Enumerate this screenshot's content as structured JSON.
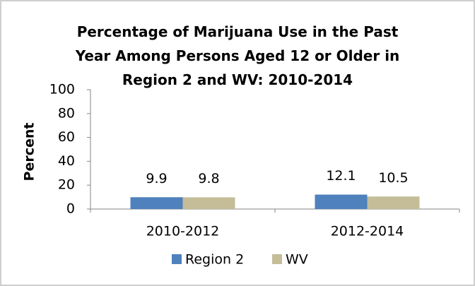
{
  "chart_data": {
    "type": "bar",
    "title": "Percentage of Marijuana Use in the Past Year Among Persons Aged 12 or Older in Region 2 and WV: 2010-2014",
    "y_label": "Percent",
    "categories": [
      "2010-2012",
      "2012-2014"
    ],
    "series": [
      {
        "name": "Region 2",
        "color": "#4f81bd",
        "values": [
          9.9,
          12.1
        ]
      },
      {
        "name": "WV",
        "color": "#c4bd97",
        "values": [
          9.8,
          10.5
        ]
      }
    ],
    "ylim": [
      0,
      100
    ],
    "yticks": [
      0,
      20,
      40,
      60,
      80,
      100
    ],
    "grid": false,
    "legend": "bottom"
  }
}
